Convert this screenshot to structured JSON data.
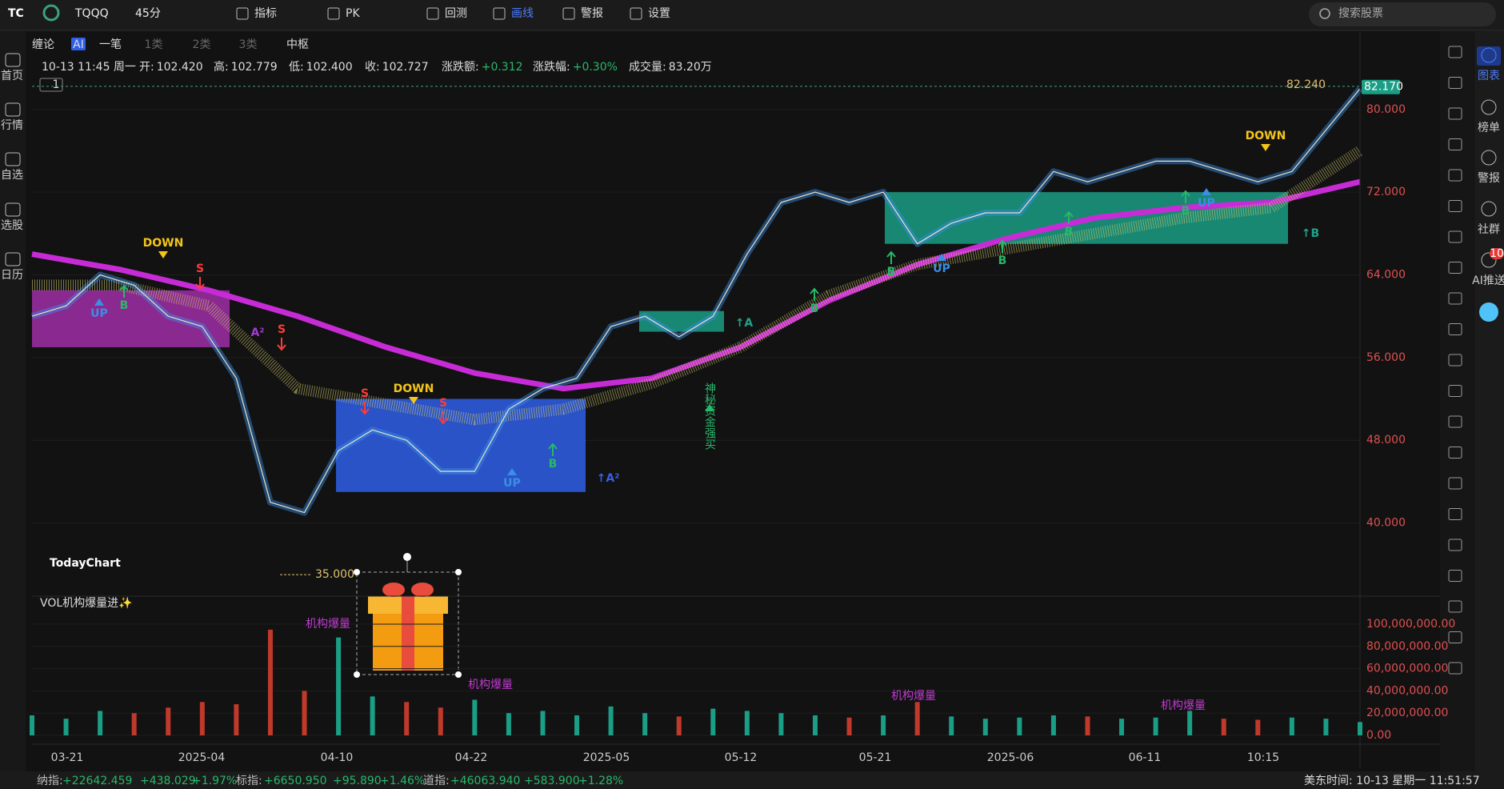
{
  "toolbar": {
    "symbol": "TQQQ",
    "interval": "45分",
    "items": [
      "指标",
      "PK",
      "回测",
      "画线",
      "警报",
      "设置"
    ],
    "search": "搜索股票"
  },
  "left_nav": [
    "首页",
    "行情",
    "自选",
    "选股",
    "日历"
  ],
  "right_nav": [
    "图表",
    "榜单",
    "警报",
    "社群",
    "AI推送"
  ],
  "ai_badge": "10",
  "chart_tabs": [
    "缠论",
    "AI",
    "一笔",
    "1类",
    "2类",
    "3类",
    "中枢"
  ],
  "quote": {
    "datetime": "10-13 11:45 周一",
    "fields": [
      {
        "label": "开:",
        "value": "102.420"
      },
      {
        "label": "高:",
        "value": "102.779"
      },
      {
        "label": "低:",
        "value": "102.400"
      },
      {
        "label": "收:",
        "value": "102.727"
      },
      {
        "label": "涨跌额:",
        "value": "+0.312"
      },
      {
        "label": "涨跌幅:",
        "value": "+0.30%"
      },
      {
        "label": "成交量:",
        "value": "83.20万"
      }
    ]
  },
  "pane_label": "1",
  "chart": {
    "ylim": [
      33,
      83
    ],
    "yticks": [
      {
        "value": 80,
        "label": "80.000"
      },
      {
        "value": 72,
        "label": "72.000"
      },
      {
        "value": 64,
        "label": "64.000"
      },
      {
        "value": 56,
        "label": "56.000"
      },
      {
        "value": 48,
        "label": "48.000"
      },
      {
        "value": 40,
        "label": "40.000"
      }
    ],
    "x_labels": [
      "03-21",
      "2025-04",
      "04-10",
      "04-22",
      "2025-05",
      "05-12",
      "05-21",
      "2025-06",
      "06-11",
      "10:15"
    ],
    "price": [
      60,
      61,
      64,
      63,
      60,
      59,
      54,
      42,
      41,
      47,
      49,
      48,
      45,
      45,
      51,
      53,
      54,
      59,
      60,
      58,
      60,
      66,
      71,
      72,
      71,
      72,
      67,
      69,
      70,
      70,
      74,
      73,
      74,
      75,
      75,
      74,
      73,
      74,
      78,
      82
    ],
    "ma_long": [
      66,
      64.5,
      62.5,
      60,
      57,
      54.5,
      53,
      54,
      57,
      61.5,
      65,
      67.5,
      69.5,
      70.5,
      71,
      73
    ],
    "ma_band": [
      63,
      63,
      61,
      53,
      51.5,
      50,
      51,
      53.5,
      57,
      62,
      65,
      66.5,
      68,
      69.5,
      70.5,
      76
    ],
    "zones": [
      {
        "low": 57,
        "high": 62.5,
        "color": "#a02fa8"
      },
      {
        "low": 43,
        "high": 52,
        "color": "#2f5fe8"
      },
      {
        "low": 58.5,
        "high": 60.5,
        "color": "#1a9e85"
      },
      {
        "low": 67,
        "high": 72,
        "color": "#1a9e85"
      }
    ],
    "annotations": [
      {
        "text": "DOWN",
        "color": "#f5c518"
      },
      {
        "text": "S",
        "color": "#ff3b3b"
      },
      {
        "text": "B",
        "color": "#27b86a"
      },
      {
        "text": "UP",
        "color": "#3a8ee6"
      },
      {
        "text": "A²",
        "color": "#a33bd1"
      },
      {
        "text": "S",
        "color": "#ff3b3b"
      },
      {
        "text": "S",
        "color": "#ff3b3b"
      },
      {
        "text": "DOWN",
        "color": "#f5c518"
      },
      {
        "text": "S",
        "color": "#ff3b3b"
      },
      {
        "text": "UP",
        "color": "#3a8ee6"
      },
      {
        "text": "B",
        "color": "#27b86a"
      },
      {
        "text": "↑A²",
        "color": "#3a5ee6"
      },
      {
        "text": "↑A",
        "color": "#1fa38a"
      },
      {
        "text": "神秘资金强买",
        "color": "#27b86a"
      },
      {
        "text": "B",
        "color": "#27b86a"
      },
      {
        "text": "B",
        "color": "#27b86a"
      },
      {
        "text": "UP",
        "color": "#3a8ee6"
      },
      {
        "text": "B",
        "color": "#27b86a"
      },
      {
        "text": "B",
        "color": "#27b86a"
      },
      {
        "text": "B",
        "color": "#27b86a"
      },
      {
        "text": "UP",
        "color": "#3a8ee6"
      },
      {
        "text": "DOWN",
        "color": "#f5c518"
      },
      {
        "text": "↑B",
        "color": "#1fa38a"
      }
    ],
    "last_price": {
      "value": 82.17,
      "label": "82.170"
    },
    "high_mark": {
      "value": 82.24,
      "label": "82.240"
    },
    "low_mark": {
      "value": 35,
      "label": "35.000"
    },
    "watermark": "TodayChart",
    "volume": {
      "title": "VOL机构爆量进✨",
      "ylim": [
        0,
        108600000
      ],
      "yticks": [
        {
          "value": 0,
          "label": "0.00"
        },
        {
          "value": 20000000,
          "label": "20,000,000.00"
        },
        {
          "value": 40000000,
          "label": "40,000,000.00"
        },
        {
          "value": 60000000,
          "label": "60,000,000.00"
        },
        {
          "value": 80000000,
          "label": "80,000,000.00"
        },
        {
          "value": 100000000,
          "label": "100,000,000.00"
        }
      ],
      "values": [
        18000000,
        15000000,
        22000000,
        20000000,
        25000000,
        30000000,
        28000000,
        95000000,
        40000000,
        88000000,
        35000000,
        30000000,
        25000000,
        32000000,
        20000000,
        22000000,
        18000000,
        26000000,
        20000000,
        17000000,
        24000000,
        22000000,
        20000000,
        18000000,
        16000000,
        18000000,
        30000000,
        17000000,
        15000000,
        16000000,
        18000000,
        17000000,
        15000000,
        16000000,
        22000000,
        15000000,
        14000000,
        16000000,
        15000000,
        12000000
      ],
      "annotations": [
        "机构爆量",
        "机构爆量",
        "机构爆量",
        "机构爆量"
      ]
    }
  },
  "status_bar": {
    "items": [
      {
        "text": "纳指:",
        "color": "#bbb"
      },
      {
        "text": "+22642.459",
        "color": "#27b86a"
      },
      {
        "text": "+438.029",
        "color": "#27b86a"
      },
      {
        "text": "+1.97%",
        "color": "#27b86a"
      },
      {
        "text": "标指:",
        "color": "#bbb"
      },
      {
        "text": "+6650.950",
        "color": "#27b86a"
      },
      {
        "text": "+95.890",
        "color": "#27b86a"
      },
      {
        "text": "+1.46%",
        "color": "#27b86a"
      },
      {
        "text": "道指:",
        "color": "#bbb"
      },
      {
        "text": "+46063.940",
        "color": "#27b86a"
      },
      {
        "text": "+583.900",
        "color": "#27b86a"
      },
      {
        "text": "+1.28%",
        "color": "#27b86a"
      }
    ],
    "time": "美东时间: 10-13 星期一 11:51:57"
  }
}
